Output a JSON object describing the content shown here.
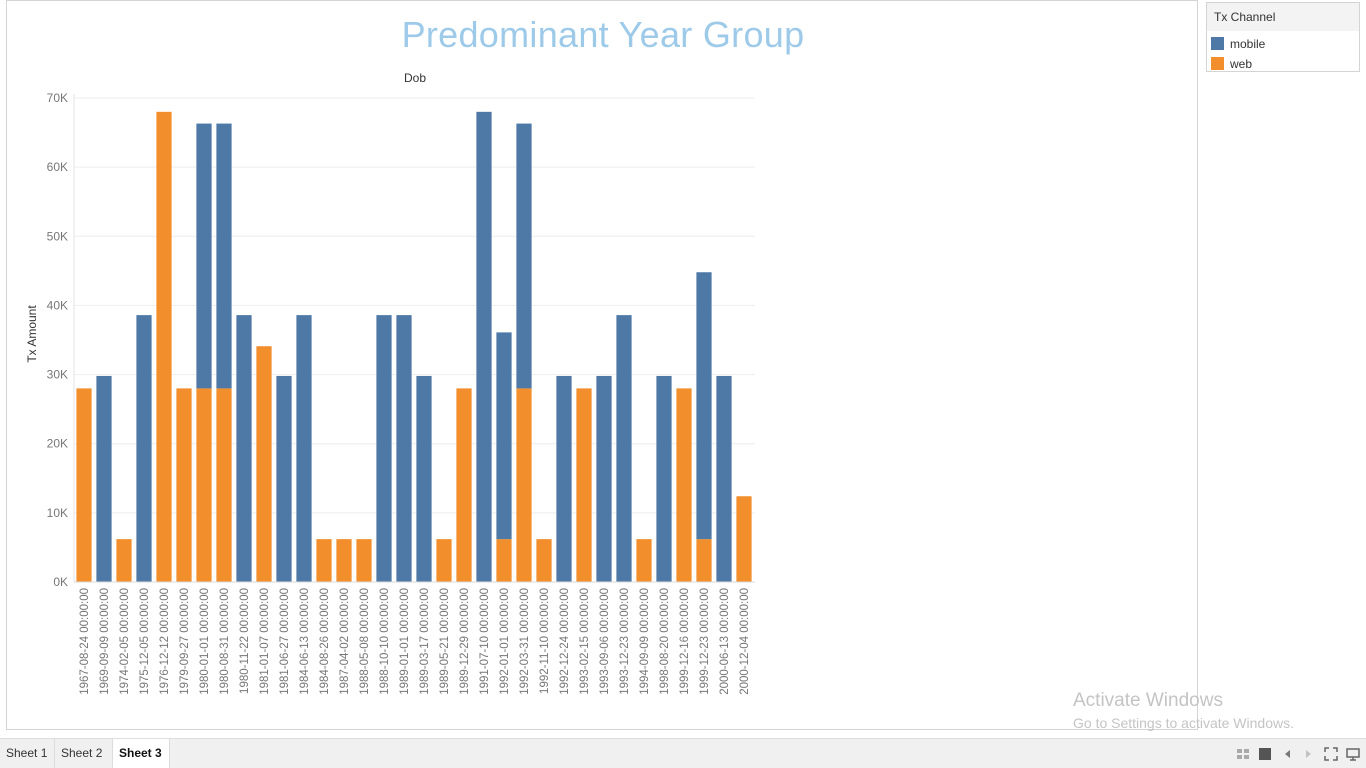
{
  "chart_data": {
    "type": "bar",
    "stacked": true,
    "title": "Predominant Year Group",
    "column_header": "Dob",
    "ylabel": "Tx Amount",
    "ylim": [
      0,
      70000
    ],
    "yticks": [
      0,
      10000,
      20000,
      30000,
      40000,
      50000,
      60000,
      70000
    ],
    "ytick_labels": [
      "0K",
      "10K",
      "20K",
      "30K",
      "40K",
      "50K",
      "60K",
      "70K"
    ],
    "grid": true,
    "legend_position": "right",
    "categories": [
      "1967-08-24 00:00:00",
      "1969-09-09 00:00:00",
      "1974-02-05 00:00:00",
      "1975-12-05 00:00:00",
      "1976-12-12 00:00:00",
      "1979-09-27 00:00:00",
      "1980-01-01 00:00:00",
      "1980-08-31 00:00:00",
      "1980-11-22 00:00:00",
      "1981-01-07 00:00:00",
      "1981-06-27 00:00:00",
      "1984-06-13 00:00:00",
      "1984-08-26 00:00:00",
      "1987-04-02 00:00:00",
      "1988-05-08 00:00:00",
      "1988-10-10 00:00:00",
      "1989-01-01 00:00:00",
      "1989-03-17 00:00:00",
      "1989-05-21 00:00:00",
      "1989-12-29 00:00:00",
      "1991-07-10 00:00:00",
      "1992-01-01 00:00:00",
      "1992-03-31 00:00:00",
      "1992-11-10 00:00:00",
      "1992-12-24 00:00:00",
      "1993-02-15 00:00:00",
      "1993-09-06 00:00:00",
      "1993-12-23 00:00:00",
      "1994-09-09 00:00:00",
      "1998-08-20 00:00:00",
      "1999-12-16 00:00:00",
      "1999-12-23 00:00:00",
      "2000-06-13 00:00:00",
      "2000-12-04 00:00:00"
    ],
    "series": [
      {
        "name": "web",
        "color": "#f28e2b",
        "values": [
          28000,
          0,
          6200,
          0,
          68000,
          28000,
          28000,
          28000,
          0,
          34100,
          0,
          0,
          6200,
          6200,
          6200,
          0,
          0,
          0,
          6200,
          28000,
          0,
          6200,
          28000,
          6200,
          0,
          28000,
          0,
          0,
          6200,
          0,
          28000,
          6200,
          0,
          12400
        ]
      },
      {
        "name": "mobile",
        "color": "#4e79a7",
        "values": [
          0,
          29800,
          0,
          38600,
          0,
          0,
          38300,
          38300,
          38600,
          0,
          29800,
          38600,
          0,
          0,
          0,
          38600,
          38600,
          29800,
          0,
          0,
          68000,
          29900,
          38300,
          0,
          29800,
          0,
          29800,
          38600,
          0,
          29800,
          0,
          38600,
          29800,
          0
        ]
      }
    ]
  },
  "legend": {
    "title": "Tx Channel",
    "items": [
      {
        "label": "mobile",
        "color": "#4e79a7"
      },
      {
        "label": "web",
        "color": "#f28e2b"
      }
    ]
  },
  "watermark": {
    "title": "Activate Windows",
    "subtitle": "Go to Settings to activate Windows."
  },
  "tabs": [
    {
      "label": "Sheet 1",
      "active": false
    },
    {
      "label": "Sheet 2",
      "active": false
    },
    {
      "label": "Sheet 3",
      "active": true
    }
  ],
  "bottom_icons": [
    "show-sheet-sorter-icon",
    "show-filmstrip-icon",
    "previous-sheet-icon",
    "next-sheet-icon",
    "fit-view-icon",
    "presentation-mode-icon"
  ]
}
